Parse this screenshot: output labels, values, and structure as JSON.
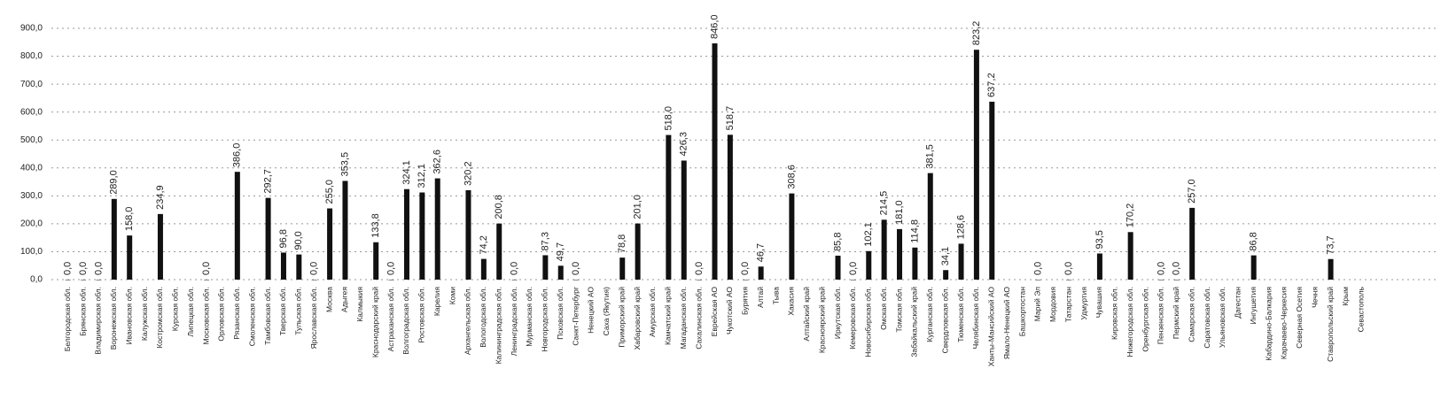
{
  "chart_data": {
    "type": "bar",
    "color": "#111111",
    "grid": true,
    "ylim": [
      0,
      900
    ],
    "yticks": [
      {
        "value": 0,
        "label": "0,0"
      },
      {
        "value": 100,
        "label": "100,0"
      },
      {
        "value": 200,
        "label": "200,0"
      },
      {
        "value": 300,
        "label": "300,0"
      },
      {
        "value": 400,
        "label": "400,0"
      },
      {
        "value": 500,
        "label": "500,0"
      },
      {
        "value": 600,
        "label": "600,0"
      },
      {
        "value": 700,
        "label": "700,0"
      },
      {
        "value": 800,
        "label": "800,0"
      },
      {
        "value": 900,
        "label": "900,0"
      }
    ],
    "categories": [
      "Белгородская обл.",
      "Брянская обл.",
      "Владимирская обл.",
      "Воронежская обл.",
      "Ивановская обл.",
      "Калужская обл.",
      "Костромская обл.",
      "Курская обл.",
      "Липецкая обл.",
      "Московская обл.",
      "Орловская обл.",
      "Рязанская обл.",
      "Смоленская обл.",
      "Тамбовская обл.",
      "Тверская обл.",
      "Тульская обл.",
      "Ярославская обл.",
      "Москва",
      "Адыгея",
      "Калмыкия",
      "Краснодарский край",
      "Астраханская обл.",
      "Волгоградская обл.",
      "Ростовская обл.",
      "Карелия",
      "Коми",
      "Архангельская обл.",
      "Вологодская обл.",
      "Калининградская обл.",
      "Ленинградская обл.",
      "Мурманская обл.",
      "Новгородская обл.",
      "Псковская обл.",
      "Санкт-Петербург",
      "Ненецкий АО",
      "Саха (Якутия)",
      "Приморский край",
      "Хабаровский край",
      "Амурская обл.",
      "Камчатский край",
      "Магаданская обл.",
      "Сахалинская обл.",
      "Еврейская АО",
      "Чукотский АО",
      "Бурятия",
      "Алтай",
      "Тыва",
      "Хакасия",
      "Алтайский край",
      "Красноярский край",
      "Иркутская обл.",
      "Кемеровская обл.",
      "Новосибирская обл.",
      "Омская обл.",
      "Томская обл.",
      "Забайкальский край",
      "Курганская обл.",
      "Свердловская обл.",
      "Тюменская обл.",
      "Челябинская обл.",
      "Ханты-Мансийский АО",
      "Ямало-Ненецкий АО",
      "Башкортостан",
      "Марий Эл",
      "Мордовия",
      "Татарстан",
      "Удмуртия",
      "Чувашия",
      "Кировская обл.",
      "Нижегородская обл.",
      "Оренбургская обл.",
      "Пензенская обл.",
      "Пермский край",
      "Самарская обл.",
      "Саратовская обл.",
      "Ульяновская обл.",
      "Дагестан",
      "Ингушетия",
      "Кабардино-Балкария",
      "Карачаево-Черкесия",
      "Северная Осетия",
      "Чечня",
      "Ставропольский край",
      "Крым",
      "Севастополь"
    ],
    "values": [
      0,
      0,
      0,
      289,
      158,
      null,
      234.9,
      null,
      null,
      0,
      null,
      386,
      null,
      292.7,
      96.8,
      90,
      0,
      255,
      353.5,
      null,
      133.8,
      0,
      324.1,
      312.1,
      362.6,
      null,
      320.2,
      74.2,
      200.8,
      0,
      null,
      87.3,
      49.7,
      0,
      null,
      null,
      78.8,
      201,
      null,
      518,
      426.3,
      0,
      846,
      518.7,
      0,
      46.7,
      null,
      308.6,
      null,
      null,
      85.8,
      0,
      102.1,
      214.5,
      181,
      114.8,
      381.5,
      34.1,
      128.6,
      823.2,
      637.2,
      null,
      null,
      0,
      null,
      0,
      null,
      93.5,
      null,
      170.2,
      null,
      0,
      0,
      257,
      null,
      null,
      null,
      86.8,
      null,
      null,
      null,
      null,
      73.7,
      null,
      null
    ],
    "value_labels": [
      "0,0",
      "0,0",
      "0,0",
      "289,0",
      "158,0",
      null,
      "234,9",
      null,
      null,
      "0,0",
      null,
      "386,0",
      null,
      "292,7",
      "96,8",
      "90,0",
      "0,0",
      "255,0",
      "353,5",
      null,
      "133,8",
      "0,0",
      "324,1",
      "312,1",
      "362,6",
      null,
      "320,2",
      "74,2",
      "200,8",
      "0,0",
      null,
      "87,3",
      "49,7",
      "0,0",
      null,
      null,
      "78,8",
      "201,0",
      null,
      "518,0",
      "426,3",
      "0,0",
      "846,0",
      "518,7",
      "0,0",
      "46,7",
      null,
      "308,6",
      null,
      null,
      "85,8",
      "0,0",
      "102,1",
      "214,5",
      "181,0",
      "114,8",
      "381,5",
      "34,1",
      "128,6",
      "823,2",
      "637,2",
      null,
      null,
      "0,0",
      null,
      "0,0",
      null,
      "93,5",
      null,
      "170,2",
      null,
      "0,0",
      "0,0",
      "257,0",
      null,
      null,
      null,
      "86,8",
      null,
      null,
      null,
      null,
      "73,7",
      null,
      null
    ]
  }
}
